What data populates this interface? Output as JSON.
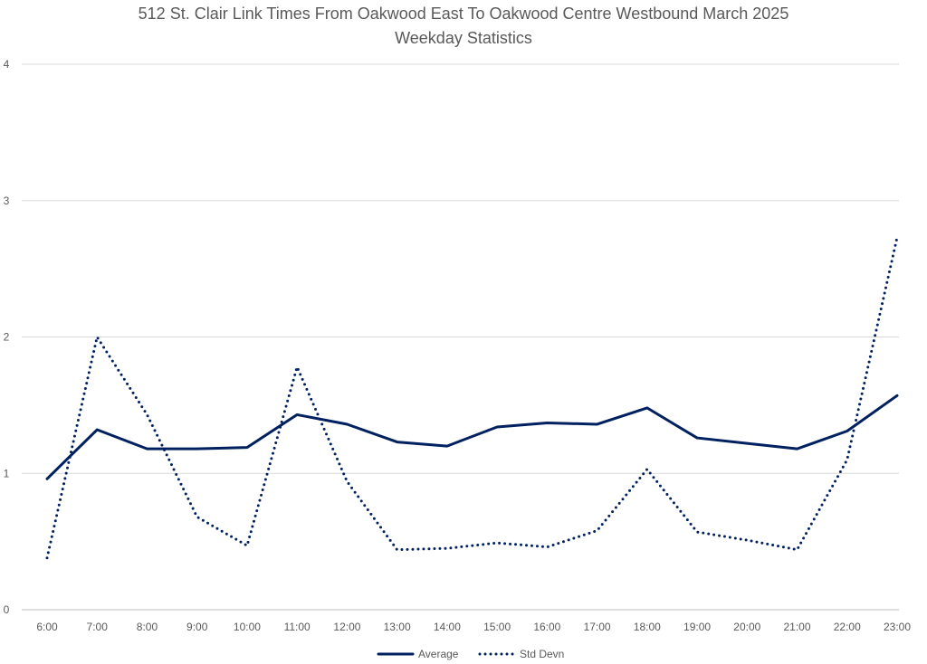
{
  "chart_data": {
    "type": "line",
    "title": "512 St. Clair Link Times From Oakwood East To Oakwood Centre Westbound March 2025",
    "subtitle": "Weekday Statistics",
    "xlabel": "",
    "ylabel": "",
    "ylim": [
      0,
      4
    ],
    "yticks": [
      "0",
      "1",
      "2",
      "3",
      "4"
    ],
    "grid": true,
    "legend_position": "bottom",
    "categories": [
      "6:00",
      "7:00",
      "8:00",
      "9:00",
      "10:00",
      "11:00",
      "12:00",
      "13:00",
      "14:00",
      "15:00",
      "16:00",
      "17:00",
      "18:00",
      "19:00",
      "20:00",
      "21:00",
      "22:00",
      "23:00"
    ],
    "series": [
      {
        "name": "Average",
        "style": "solid",
        "color": "#002060",
        "values": [
          0.96,
          1.32,
          1.18,
          1.18,
          1.19,
          1.43,
          1.36,
          1.23,
          1.2,
          1.34,
          1.37,
          1.36,
          1.48,
          1.26,
          1.22,
          1.18,
          1.31,
          1.57
        ]
      },
      {
        "name": "Std Devn",
        "style": "dotted",
        "color": "#002060",
        "values": [
          0.38,
          2.0,
          1.43,
          0.68,
          0.47,
          1.78,
          0.94,
          0.44,
          0.45,
          0.49,
          0.46,
          0.58,
          1.03,
          0.57,
          0.51,
          0.44,
          1.1,
          2.73
        ]
      }
    ]
  }
}
